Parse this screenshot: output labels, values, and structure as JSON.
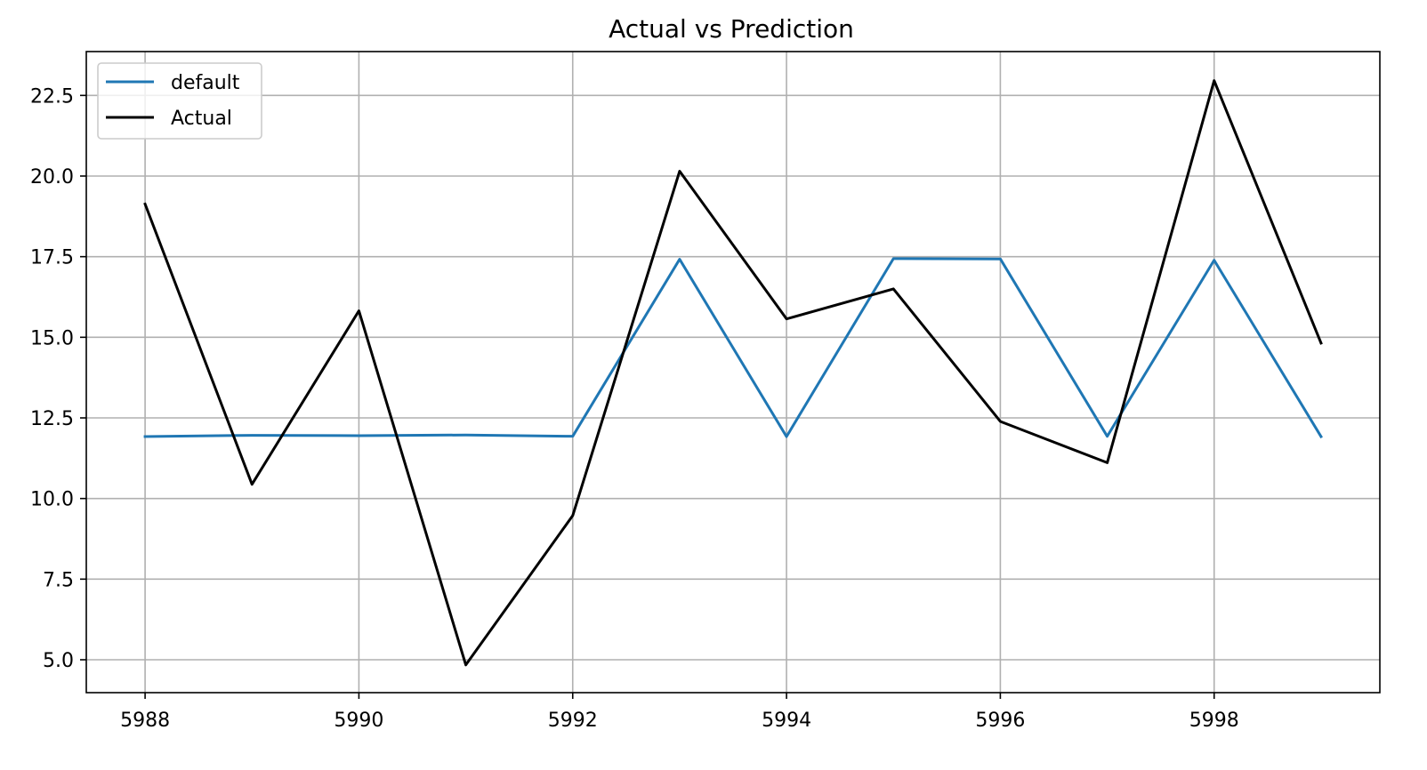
{
  "chart_data": {
    "type": "line",
    "title": "Actual vs Prediction",
    "xlabel": "",
    "ylabel": "",
    "x": [
      5988,
      5989,
      5990,
      5991,
      5992,
      5993,
      5994,
      5995,
      5996,
      5997,
      5998,
      5999
    ],
    "xlim": [
      5987.45,
      5999.55
    ],
    "ylim": [
      3.98,
      23.86
    ],
    "xticks": [
      5988,
      5990,
      5992,
      5994,
      5996,
      5998
    ],
    "xtick_labels": [
      "5988",
      "5990",
      "5992",
      "5994",
      "5996",
      "5998"
    ],
    "yticks": [
      5.0,
      7.5,
      10.0,
      12.5,
      15.0,
      17.5,
      20.0,
      22.5
    ],
    "ytick_labels": [
      "5.0",
      "7.5",
      "10.0",
      "12.5",
      "15.0",
      "17.5",
      "20.0",
      "22.5"
    ],
    "grid": true,
    "legend_position": "upper-left",
    "series": [
      {
        "name": "default",
        "color": "#1f77b4",
        "values": [
          11.92,
          11.96,
          11.95,
          11.97,
          11.93,
          17.42,
          11.92,
          17.44,
          17.43,
          11.93,
          17.39,
          11.92
        ]
      },
      {
        "name": "Actual",
        "color": "#000000",
        "values": [
          19.13,
          10.44,
          15.82,
          4.84,
          9.47,
          20.15,
          15.57,
          16.5,
          12.39,
          11.11,
          22.96,
          14.82
        ]
      }
    ]
  }
}
